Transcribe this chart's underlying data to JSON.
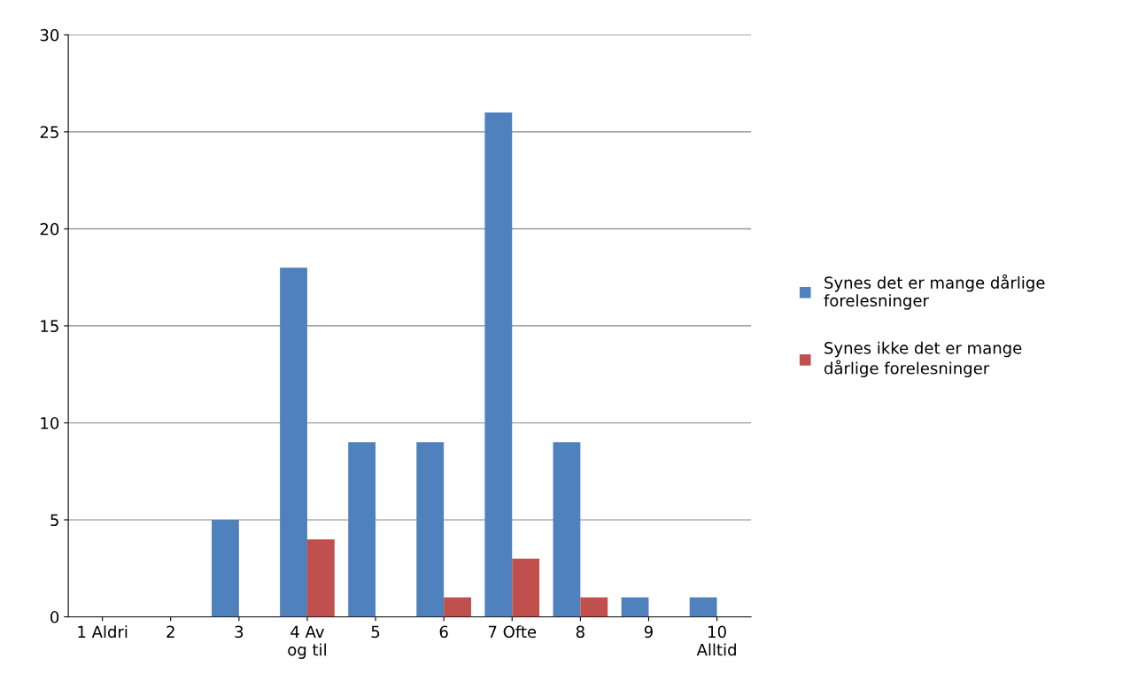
{
  "chart_data": {
    "type": "bar",
    "categories": [
      "1 Aldri",
      "2",
      "3",
      "4 Av\nog til",
      "5",
      "6",
      "7 Ofte",
      "8",
      "9",
      "10\nAlltid"
    ],
    "series": [
      {
        "name": "Synes det er mange dårlige\nforelesninger",
        "color": "#4f81bd",
        "values": [
          0,
          0,
          5,
          18,
          9,
          9,
          26,
          9,
          1,
          1
        ]
      },
      {
        "name": "Synes ikke det er mange\ndårlige forelesninger",
        "color": "#c0504d",
        "values": [
          0,
          0,
          0,
          4,
          0,
          1,
          3,
          1,
          0,
          0
        ]
      }
    ],
    "ylim": [
      0,
      30
    ],
    "yticks": [
      0,
      5,
      10,
      15,
      20,
      25,
      30
    ],
    "grid": "y",
    "legend": "right"
  }
}
